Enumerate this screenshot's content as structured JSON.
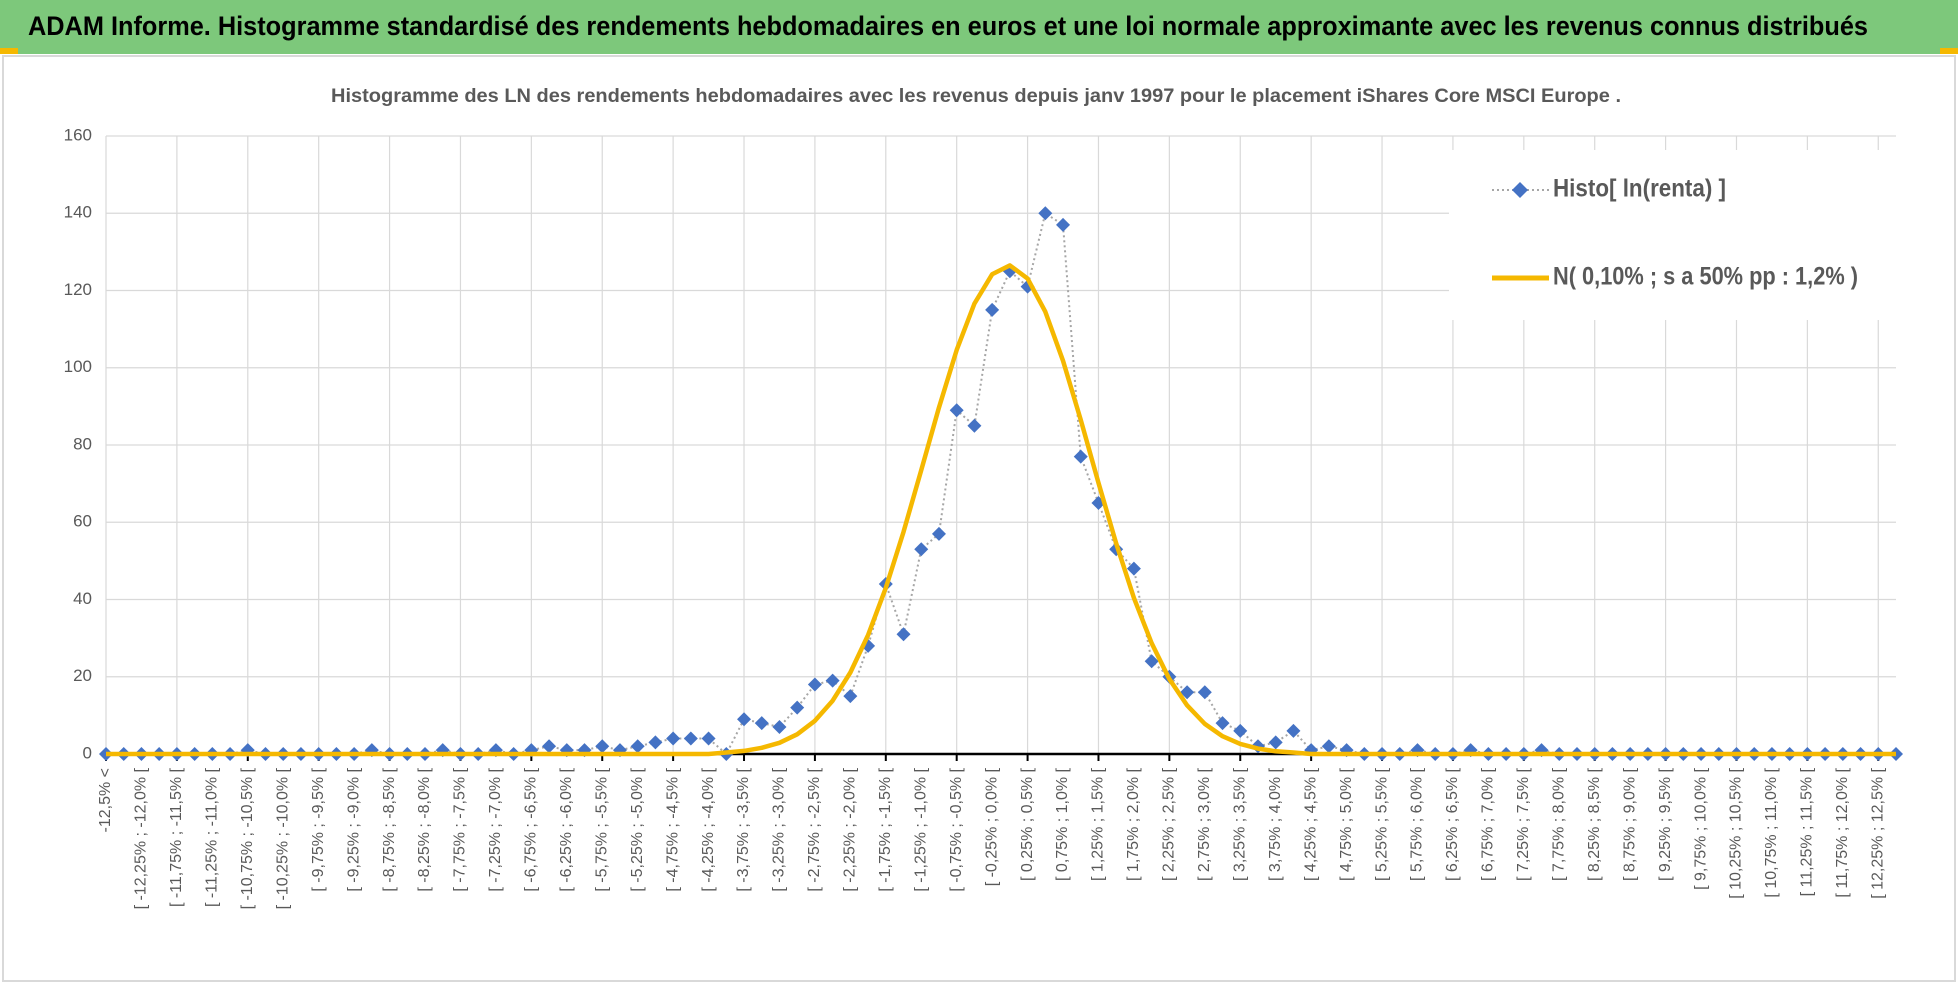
{
  "header": {
    "title": "ADAM Informe. Histogramme standardisé des rendements hebdomadaires en euros et une loi normale approximante avec les revenus connus distribués"
  },
  "chart_data": {
    "type": "line",
    "title": "Histogramme  des LN des rendements hebdomadaires avec les revenus depuis janv 1997 pour le placement iShares Core MSCI Europe .",
    "categories": [
      "-12,5% <",
      null,
      "[ -12,25% ; -12,0% [",
      null,
      "[ -11,75% ; -11,5% [",
      null,
      "[ -11,25% ; -11,0% [",
      null,
      "[ -10,75% ; -10,5% [",
      null,
      "[ -10,25% ; -10,0% [",
      null,
      "[ -9,75% ; -9,5% [",
      null,
      "[ -9,25% ; -9,0% [",
      null,
      "[ -8,75% ; -8,5% [",
      null,
      "[ -8,25% ; -8,0% [",
      null,
      "[ -7,75% ; -7,5% [",
      null,
      "[ -7,25% ; -7,0% [",
      null,
      "[ -6,75% ; -6,5% [",
      null,
      "[ -6,25% ; -6,0% [",
      null,
      "[ -5,75% ; -5,5% [",
      null,
      "[ -5,25% ; -5,0% [",
      null,
      "[ -4,75% ; -4,5% [",
      null,
      "[ -4,25% ; -4,0% [",
      null,
      "[ -3,75% ; -3,5% [",
      null,
      "[ -3,25% ; -3,0% [",
      null,
      "[ -2,75% ; -2,5% [",
      null,
      "[ -2,25% ; -2,0% [",
      null,
      "[ -1,75% ; -1,5% [",
      null,
      "[ -1,25% ; -1,0% [",
      null,
      "[ -0,75% ; -0,5% [",
      null,
      "[ -0,25% ; 0,0% [",
      null,
      "[ 0,25% ; 0,5% [",
      null,
      "[ 0,75% ; 1,0% [",
      null,
      "[ 1,25% ; 1,5% [",
      null,
      "[ 1,75% ; 2,0% [",
      null,
      "[ 2,25% ; 2,5% [",
      null,
      "[ 2,75% ; 3,0% [",
      null,
      "[ 3,25% ; 3,5% [",
      null,
      "[ 3,75% ; 4,0% [",
      null,
      "[ 4,25% ; 4,5% [",
      null,
      "[ 4,75% ; 5,0% [",
      null,
      "[ 5,25% ; 5,5% [",
      null,
      "[ 5,75% ; 6,0% [",
      null,
      "[ 6,25% ; 6,5% [",
      null,
      "[ 6,75% ; 7,0% [",
      null,
      "[ 7,25% ; 7,5% [",
      null,
      "[ 7,75% ; 8,0% [",
      null,
      "[ 8,25% ; 8,5% [",
      null,
      "[ 8,75% ; 9,0% [",
      null,
      "[ 9,25% ; 9,5% [",
      null,
      "[ 9,75% ; 10,0% [",
      null,
      "[ 10,25% ; 10,5% [",
      null,
      "[ 10,75% ; 11,0% [",
      null,
      "[ 11,25% ; 11,5% [",
      null,
      "[ 11,75% ; 12,0% [",
      null,
      "[ 12,25% ; 12,5% [",
      null
    ],
    "series": [
      {
        "name": "Histo[ ln(renta) ]",
        "color": "#4472c4",
        "marker": "diamond",
        "values": [
          0,
          0,
          0,
          0,
          0,
          0,
          0,
          0,
          1,
          0,
          0,
          0,
          0,
          0,
          0,
          1,
          0,
          0,
          0,
          1,
          0,
          0,
          1,
          0,
          1,
          2,
          1,
          1,
          2,
          1,
          2,
          3,
          4,
          4,
          4,
          0,
          9,
          8,
          7,
          12,
          18,
          19,
          15,
          28,
          44,
          31,
          53,
          57,
          89,
          85,
          115,
          125,
          121,
          140,
          137,
          77,
          65,
          53,
          48,
          24,
          20,
          16,
          16,
          8,
          6,
          2,
          3,
          6,
          1,
          2,
          1,
          0,
          0,
          0,
          1,
          0,
          0,
          1,
          0,
          0,
          0,
          1,
          0,
          0,
          0,
          0,
          0,
          0,
          0,
          0,
          0,
          0,
          0,
          0,
          0,
          0,
          0,
          0,
          0,
          0,
          0,
          0
        ]
      },
      {
        "name": "N( 0,10% ; s a 50% pp : 1,2% )",
        "color": "#f5b800",
        "marker": "none",
        "values": [
          0,
          0,
          0,
          0,
          0,
          0,
          0,
          0,
          0,
          0,
          0,
          0,
          0,
          0,
          0,
          0,
          0,
          0,
          0,
          0,
          0,
          0,
          0,
          0,
          0,
          0,
          0,
          0,
          0,
          0,
          0,
          0,
          0,
          0,
          0,
          0.4,
          0.8,
          1.6,
          2.9,
          5.1,
          8.6,
          13.8,
          21.1,
          30.8,
          43,
          57.5,
          73.5,
          89.7,
          104.6,
          116.6,
          124.2,
          126.5,
          123.1,
          114.5,
          101.8,
          86.5,
          70.2,
          54.5,
          40.4,
          28.7,
          19.4,
          12.6,
          7.8,
          4.6,
          2.6,
          1.4,
          0.7,
          0.4,
          0,
          0,
          0,
          0,
          0,
          0,
          0,
          0,
          0,
          0,
          0,
          0,
          0,
          0,
          0,
          0,
          0,
          0,
          0,
          0,
          0,
          0,
          0,
          0,
          0,
          0,
          0,
          0,
          0,
          0,
          0,
          0,
          0,
          0
        ]
      }
    ],
    "ylim": [
      0,
      160
    ],
    "yticks": [
      0,
      20,
      40,
      60,
      80,
      100,
      120,
      140,
      160
    ],
    "grid": true,
    "legend": "top-right"
  }
}
